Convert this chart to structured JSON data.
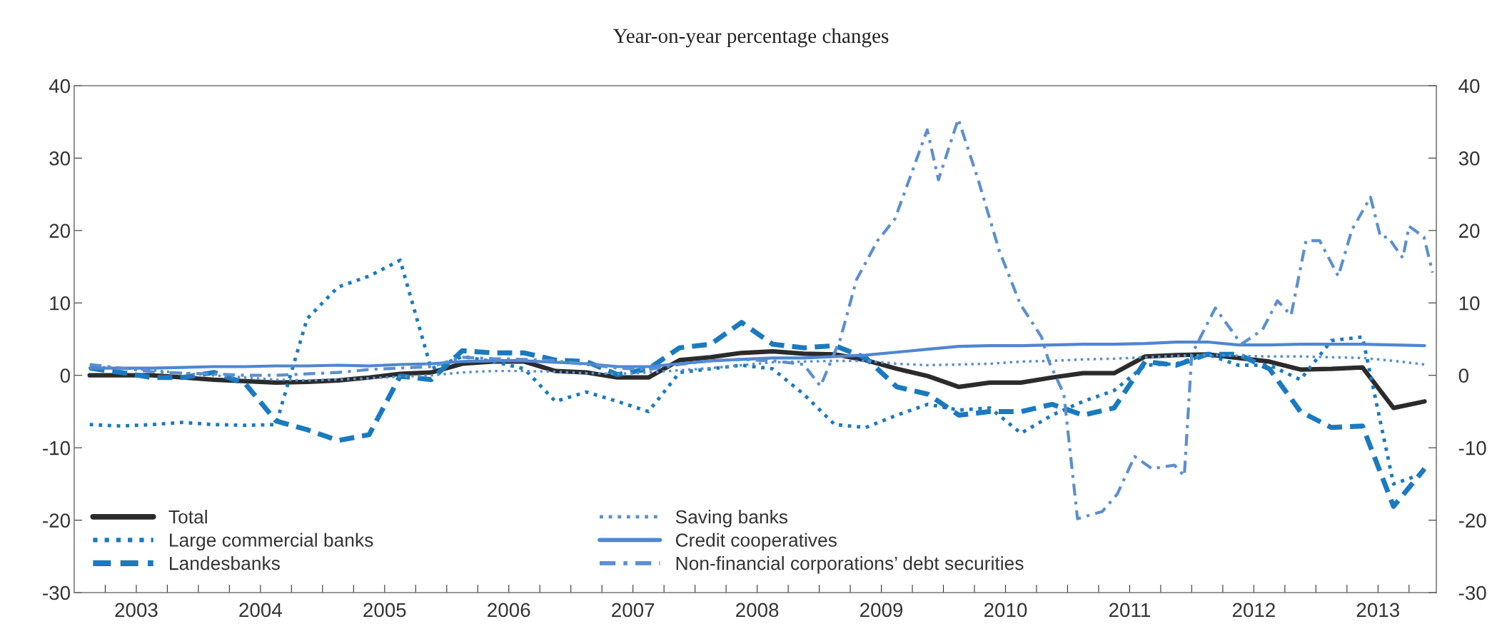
{
  "chart_data": {
    "type": "line",
    "subtitle": "Year-on-year percentage changes",
    "x": [
      2003.125,
      2003.375,
      2003.625,
      2003.875,
      2004.125,
      2004.375,
      2004.625,
      2004.875,
      2005.125,
      2005.375,
      2005.625,
      2005.875,
      2006.125,
      2006.375,
      2006.625,
      2006.875,
      2007.125,
      2007.375,
      2007.625,
      2007.875,
      2008.125,
      2008.375,
      2008.625,
      2008.875,
      2009.125,
      2009.375,
      2009.625,
      2009.875,
      2010.125,
      2010.375,
      2010.625,
      2010.875,
      2011.125,
      2011.375,
      2011.625,
      2011.875,
      2012.125,
      2012.375,
      2012.625,
      2012.875,
      2013.125,
      2013.375,
      2013.625,
      2013.875
    ],
    "series": [
      {
        "name": "Total",
        "color": "#2b2b2b",
        "line_style": "solid",
        "values": [
          0,
          0,
          0,
          -0.3,
          -0.6,
          -0.8,
          -1.0,
          -0.9,
          -0.7,
          -0.3,
          0.2,
          0.4,
          1.6,
          1.9,
          1.9,
          0.6,
          0.4,
          -0.3,
          -0.3,
          2.1,
          2.5,
          3.1,
          3.3,
          3.0,
          2.9,
          2.1,
          0.9,
          -0.1,
          -1.6,
          -1.0,
          -1.0,
          -0.3,
          0.3,
          0.3,
          2.6,
          2.8,
          2.9,
          2.4,
          1.9,
          0.8,
          0.9,
          1.1,
          -4.5,
          -3.6
        ]
      },
      {
        "name": "Large commercial banks",
        "color": "#1a7abf",
        "line_style": "dotted",
        "values": [
          -6.8,
          -7.0,
          -6.8,
          -6.5,
          -6.8,
          -6.9,
          -6.8,
          7.8,
          12.2,
          13.7,
          15.9,
          0.9,
          2.6,
          1.9,
          0.9,
          -3.6,
          -2.3,
          -3.6,
          -5.0,
          0.4,
          0.9,
          1.4,
          0.9,
          -2.6,
          -6.8,
          -7.2,
          -5.5,
          -4.0,
          -4.8,
          -4.5,
          -8.0,
          -5.5,
          -3.6,
          -2.1,
          1.4,
          1.6,
          2.9,
          1.4,
          1.4,
          -0.6,
          4.8,
          5.3,
          -15.0,
          -13.5
        ]
      },
      {
        "name": "Landesbanks",
        "color": "#1a7abf",
        "line_style": "dashed",
        "values": [
          1.0,
          0.4,
          -0.3,
          -0.3,
          0.4,
          -1.1,
          -6.3,
          -7.5,
          -9.0,
          -8.2,
          -0.1,
          -0.6,
          3.4,
          3.1,
          3.1,
          2.1,
          1.9,
          0.1,
          0.9,
          3.8,
          4.3,
          7.3,
          4.3,
          3.8,
          4.1,
          2.4,
          -1.6,
          -2.6,
          -5.5,
          -5.0,
          -5.0,
          -4.0,
          -5.5,
          -4.5,
          1.9,
          1.4,
          2.9,
          2.9,
          0.9,
          -5.0,
          -7.2,
          -7.0,
          -18.1,
          -12.9
        ]
      },
      {
        "name": "Saving banks",
        "color": "#5b8fcf",
        "line_style": "dotted",
        "values": [
          1.2,
          1.0,
          0.7,
          0.3,
          0,
          -0.3,
          -0.6,
          -0.7,
          -0.6,
          -0.4,
          -0.2,
          0,
          0.4,
          0.6,
          0.6,
          0.5,
          0.3,
          0.2,
          0.4,
          0.7,
          1.0,
          1.4,
          1.8,
          1.9,
          2.0,
          2.0,
          1.6,
          1.4,
          1.5,
          1.6,
          1.9,
          2.0,
          2.2,
          2.3,
          2.5,
          2.7,
          2.8,
          2.7,
          2.6,
          2.6,
          2.5,
          2.4,
          2.0,
          1.5
        ]
      },
      {
        "name": "Credit cooperatives",
        "color": "#4f86d0",
        "line_style": "solid",
        "values": [
          1.0,
          1.0,
          1.0,
          1.1,
          1.2,
          1.2,
          1.3,
          1.3,
          1.4,
          1.3,
          1.5,
          1.6,
          1.9,
          2.0,
          2.0,
          1.8,
          1.6,
          1.2,
          1.2,
          1.6,
          2.0,
          2.2,
          2.4,
          2.4,
          2.6,
          2.8,
          3.2,
          3.6,
          4.0,
          4.1,
          4.1,
          4.2,
          4.3,
          4.3,
          4.4,
          4.6,
          4.6,
          4.2,
          4.2,
          4.3,
          4.3,
          4.3,
          4.2,
          4.1
        ]
      },
      {
        "name": "Non-financial corporations’ debt securities",
        "color": "#5b8fcf",
        "line_style": "dashdot",
        "x": [
          2003.125,
          2003.375,
          2003.625,
          2003.875,
          2004.125,
          2004.375,
          2004.625,
          2004.875,
          2005.125,
          2005.375,
          2005.625,
          2005.875,
          2006.125,
          2006.375,
          2006.625,
          2006.875,
          2007.125,
          2007.375,
          2007.625,
          2007.875,
          2008.125,
          2008.375,
          2008.625,
          2008.875,
          2009.01,
          2009.17,
          2009.3,
          2009.47,
          2009.61,
          2009.87,
          2009.96,
          2010.12,
          2010.28,
          2010.45,
          2010.62,
          2010.79,
          2010.85,
          2010.97,
          2011.08,
          2011.28,
          2011.4,
          2011.54,
          2011.68,
          2011.86,
          2011.94,
          2012.0,
          2012.19,
          2012.4,
          2012.57,
          2012.69,
          2012.8,
          2012.92,
          2013.03,
          2013.18,
          2013.29,
          2013.44,
          2013.52,
          2013.58,
          2013.7,
          2013.75,
          2013.87,
          2013.94
        ],
        "values": [
          1.5,
          1.0,
          0.5,
          0.3,
          0.2,
          0,
          0,
          0.2,
          0.4,
          0.8,
          1.0,
          1.2,
          2.5,
          2.3,
          2.2,
          2.0,
          1.5,
          1.0,
          0.8,
          1.5,
          2.0,
          2.2,
          2.0,
          1.5,
          -1.5,
          5.0,
          13.2,
          18.6,
          21.6,
          33.9,
          27.0,
          35.4,
          27.0,
          17.2,
          9.8,
          5.3,
          1.9,
          -2.6,
          -19.8,
          -18.8,
          -16.4,
          -11.2,
          -12.9,
          -12.4,
          -13.9,
          2.9,
          9.3,
          4.3,
          6.3,
          10.3,
          8.3,
          18.6,
          18.6,
          13.7,
          20.1,
          24.6,
          19.1,
          19.1,
          16.2,
          20.6,
          19.1,
          14.2
        ]
      }
    ],
    "xlim": [
      2003.0,
      2013.97
    ],
    "xticks": [
      {
        "value": 2003.25,
        "label": null
      },
      {
        "value": 2003.5,
        "label": "2003"
      },
      {
        "value": 2003.75,
        "label": null
      },
      {
        "value": 2004.0,
        "label": null
      },
      {
        "value": 2004.25,
        "label": null
      },
      {
        "value": 2004.5,
        "label": "2004"
      },
      {
        "value": 2004.75,
        "label": null
      },
      {
        "value": 2005.0,
        "label": null
      },
      {
        "value": 2005.25,
        "label": null
      },
      {
        "value": 2005.5,
        "label": "2005"
      },
      {
        "value": 2005.75,
        "label": null
      },
      {
        "value": 2006.0,
        "label": null
      },
      {
        "value": 2006.25,
        "label": null
      },
      {
        "value": 2006.5,
        "label": "2006"
      },
      {
        "value": 2006.75,
        "label": null
      },
      {
        "value": 2007.0,
        "label": null
      },
      {
        "value": 2007.25,
        "label": null
      },
      {
        "value": 2007.5,
        "label": "2007"
      },
      {
        "value": 2007.75,
        "label": null
      },
      {
        "value": 2008.0,
        "label": null
      },
      {
        "value": 2008.25,
        "label": null
      },
      {
        "value": 2008.5,
        "label": "2008"
      },
      {
        "value": 2008.75,
        "label": null
      },
      {
        "value": 2009.0,
        "label": null
      },
      {
        "value": 2009.25,
        "label": null
      },
      {
        "value": 2009.5,
        "label": "2009"
      },
      {
        "value": 2009.75,
        "label": null
      },
      {
        "value": 2010.0,
        "label": null
      },
      {
        "value": 2010.25,
        "label": null
      },
      {
        "value": 2010.5,
        "label": "2010"
      },
      {
        "value": 2010.75,
        "label": null
      },
      {
        "value": 2011.0,
        "label": null
      },
      {
        "value": 2011.25,
        "label": null
      },
      {
        "value": 2011.5,
        "label": "2011"
      },
      {
        "value": 2011.75,
        "label": null
      },
      {
        "value": 2012.0,
        "label": null
      },
      {
        "value": 2012.25,
        "label": null
      },
      {
        "value": 2012.5,
        "label": "2012"
      },
      {
        "value": 2012.75,
        "label": null
      },
      {
        "value": 2013.0,
        "label": null
      },
      {
        "value": 2013.25,
        "label": null
      },
      {
        "value": 2013.5,
        "label": "2013"
      },
      {
        "value": 2013.75,
        "label": null
      }
    ],
    "ylim": [
      -30,
      40
    ],
    "yticks": [
      -30,
      -20,
      -10,
      0,
      10,
      20,
      30,
      40
    ],
    "y2lim": [
      -30,
      40
    ],
    "y2ticks": [
      -30,
      -20,
      -10,
      0,
      10,
      20,
      30,
      40
    ],
    "grid": false,
    "legend": "bottom left",
    "marker": "none"
  }
}
